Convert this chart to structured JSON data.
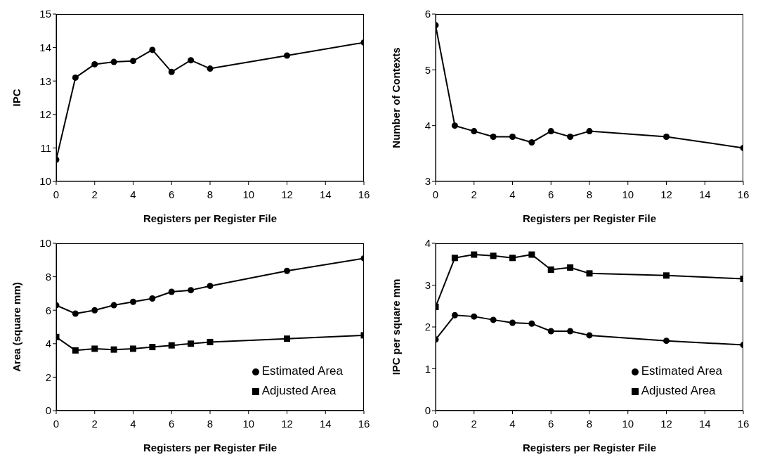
{
  "chart_data": [
    {
      "type": "line",
      "xlabel": "Registers per Register File",
      "ylabel": "IPC",
      "x": [
        0,
        1,
        2,
        3,
        4,
        5,
        6,
        7,
        8,
        12,
        16
      ],
      "values": [
        10.65,
        13.1,
        13.5,
        13.57,
        13.6,
        13.93,
        13.27,
        13.62,
        13.37,
        13.76,
        14.15
      ],
      "color": "#000000",
      "marker": "circle",
      "xlim": [
        0,
        16
      ],
      "xticks": [
        0,
        2,
        4,
        6,
        8,
        10,
        12,
        14,
        16
      ],
      "ylim": [
        10,
        15
      ],
      "yticks": [
        10,
        11,
        12,
        13,
        14,
        15
      ],
      "grid": false
    },
    {
      "type": "line",
      "xlabel": "Registers per Register File",
      "ylabel": "Number of Contexts",
      "x": [
        0,
        1,
        2,
        3,
        4,
        5,
        6,
        7,
        8,
        12,
        16
      ],
      "values": [
        5.8,
        4.0,
        3.9,
        3.8,
        3.8,
        3.7,
        3.9,
        3.8,
        3.9,
        3.8,
        3.6
      ],
      "color": "#000000",
      "marker": "circle",
      "xlim": [
        0,
        16
      ],
      "xticks": [
        0,
        2,
        4,
        6,
        8,
        10,
        12,
        14,
        16
      ],
      "ylim": [
        3,
        6
      ],
      "yticks": [
        3,
        4,
        5,
        6
      ],
      "grid": false
    },
    {
      "type": "line",
      "xlabel": "Registers per Register File",
      "ylabel": "Area (square mm)",
      "x": [
        0,
        1,
        2,
        3,
        4,
        5,
        6,
        7,
        8,
        12,
        16
      ],
      "series": [
        {
          "name": "Estimated Area",
          "color": "#000000",
          "marker": "circle",
          "values": [
            6.3,
            5.8,
            6.0,
            6.3,
            6.5,
            6.7,
            7.1,
            7.2,
            7.45,
            8.35,
            9.1
          ]
        },
        {
          "name": "Adjusted Area",
          "color": "#000000",
          "marker": "square",
          "values": [
            4.4,
            3.6,
            3.7,
            3.65,
            3.7,
            3.8,
            3.9,
            4.0,
            4.1,
            4.3,
            4.5
          ]
        }
      ],
      "xlim": [
        0,
        16
      ],
      "xticks": [
        0,
        2,
        4,
        6,
        8,
        10,
        12,
        14,
        16
      ],
      "ylim": [
        0,
        10
      ],
      "yticks": [
        0,
        2,
        4,
        6,
        8,
        10
      ],
      "grid": false,
      "legend": "bottom right"
    },
    {
      "type": "line",
      "xlabel": "Registers per Register File",
      "ylabel": "IPC per square mm",
      "x": [
        0,
        1,
        2,
        3,
        4,
        5,
        6,
        7,
        8,
        12,
        16
      ],
      "series": [
        {
          "name": "Estimated Area",
          "color": "#000000",
          "marker": "circle",
          "values": [
            1.7,
            2.28,
            2.25,
            2.17,
            2.1,
            2.08,
            1.9,
            1.9,
            1.8,
            1.67,
            1.57
          ]
        },
        {
          "name": "Adjusted Area",
          "color": "#000000",
          "marker": "square",
          "values": [
            2.48,
            3.65,
            3.73,
            3.7,
            3.65,
            3.73,
            3.37,
            3.42,
            3.28,
            3.23,
            3.15
          ]
        }
      ],
      "xlim": [
        0,
        16
      ],
      "xticks": [
        0,
        2,
        4,
        6,
        8,
        10,
        12,
        14,
        16
      ],
      "ylim": [
        0,
        4
      ],
      "yticks": [
        0,
        1,
        2,
        3,
        4
      ],
      "grid": false,
      "legend": "bottom right"
    }
  ]
}
